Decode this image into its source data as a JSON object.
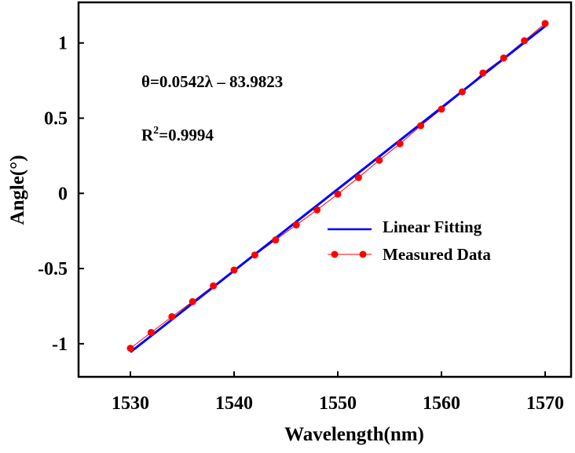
{
  "chart_data": {
    "type": "line",
    "title": "",
    "xlabel": "Wavelength(nm)",
    "ylabel": "Angle(°)",
    "xlim": [
      1525,
      1572.5
    ],
    "ylim": [
      -1.22,
      1.27
    ],
    "xticks": [
      1530,
      1540,
      1550,
      1560,
      1570
    ],
    "xtick_labels": [
      "1530",
      "1540",
      "1550",
      "1560",
      "1570"
    ],
    "yticks": [
      -1,
      -0.5,
      0,
      0.5,
      1
    ],
    "ytick_labels": [
      "-1",
      "-0.5",
      "0",
      "0.5",
      "1"
    ],
    "grid": false,
    "legend_position": "center-right",
    "annotations": {
      "equation": "θ=0.0542λ – 83.9823",
      "r2_prefix": "R",
      "r2_sup": "2",
      "r2_value": "=0.9994"
    },
    "series": [
      {
        "name": "Linear Fitting",
        "style": "line",
        "color": "#0000ff",
        "x": [
          1530,
          1570
        ],
        "y": [
          -1.056,
          1.112
        ]
      },
      {
        "name": "Measured Data",
        "style": "line-marker",
        "color": "#ff0000",
        "x": [
          1530,
          1532,
          1534,
          1536,
          1538,
          1540,
          1542,
          1544,
          1546,
          1548,
          1550,
          1552,
          1554,
          1556,
          1558,
          1560,
          1562,
          1564,
          1566,
          1568,
          1570
        ],
        "y": [
          -1.03,
          -0.925,
          -0.82,
          -0.72,
          -0.615,
          -0.51,
          -0.41,
          -0.31,
          -0.21,
          -0.11,
          -0.005,
          0.105,
          0.22,
          0.33,
          0.45,
          0.56,
          0.675,
          0.8,
          0.9,
          1.015,
          1.13
        ]
      }
    ]
  }
}
